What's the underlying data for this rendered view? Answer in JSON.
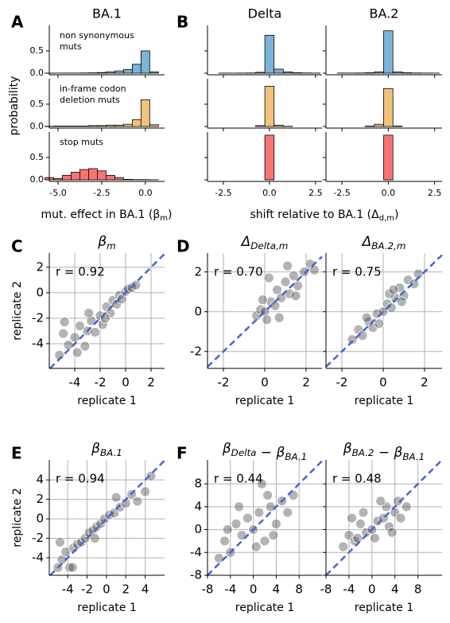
{
  "panels": [
    "A",
    "B",
    "C",
    "D",
    "E",
    "F"
  ],
  "labels": {
    "probability": "probability",
    "a_xlabel": {
      "text": "mut. effect in BA.1 (β",
      "sub": "m",
      "end": ")"
    },
    "b_xlabel": {
      "text": "shift relative to BA.1 (Δ",
      "sub": "d,m",
      "end": ")"
    }
  },
  "chart_data": [
    {
      "type": "histogram",
      "title": "BA.1",
      "annotation": [
        "non synonymous",
        "muts"
      ],
      "color": "#7ab4d8",
      "bins": [
        -5.75,
        -5.25,
        -4.75,
        -4.25,
        -3.75,
        -3.25,
        -2.75,
        -2.25,
        -1.75,
        -1.25,
        -0.75,
        -0.25,
        0.25,
        0.75
      ],
      "counts": [
        0.002,
        0.002,
        0.003,
        0.003,
        0.005,
        0.008,
        0.015,
        0.03,
        0.05,
        0.08,
        0.2,
        0.5,
        0.03
      ],
      "xlim": [
        -5.5,
        1.1
      ],
      "ylim": [
        -0.036,
        1.07
      ],
      "xticks": [
        -5,
        -2.5,
        0
      ],
      "show_xtick_labels": false,
      "yticks": [
        {
          "value": 0,
          "label": "0.0"
        },
        0.5
      ],
      "show_ytick_labels": true
    },
    {
      "type": "histogram",
      "annotation": [
        "in-frame codon",
        "deletion muts"
      ],
      "color": "#f0c27b",
      "bins": [
        -5.75,
        -5.25,
        -4.75,
        -4.25,
        -3.75,
        -3.25,
        -2.75,
        -2.25,
        -1.75,
        -1.25,
        -0.75,
        -0.25,
        0.25,
        0.75
      ],
      "counts": [
        0.005,
        0.01,
        0.01,
        0.01,
        0.01,
        0.02,
        0.02,
        0.03,
        0.03,
        0.05,
        0.15,
        0.6,
        0.04
      ],
      "xlim": [
        -5.5,
        1.1
      ],
      "ylim": [
        -0.036,
        1.07
      ],
      "xticks": [
        -5,
        -2.5,
        0
      ],
      "show_xtick_labels": false,
      "yticks": [
        {
          "value": 0,
          "label": "0.0"
        },
        0.5
      ],
      "show_ytick_labels": true
    },
    {
      "type": "histogram",
      "annotation": [
        "stop muts"
      ],
      "color": "#f87474",
      "bins": [
        -5.75,
        -5.25,
        -4.75,
        -4.25,
        -3.75,
        -3.25,
        -2.75,
        -2.25,
        -1.75,
        -1.25,
        -0.75,
        -0.25,
        0.25,
        0.75
      ],
      "counts": [
        0.05,
        0.03,
        0.1,
        0.17,
        0.23,
        0.25,
        0.2,
        0.1,
        0.05,
        0.01,
        0.005,
        0.005,
        0.002
      ],
      "xlim": [
        -5.5,
        1.1
      ],
      "ylim": [
        -0.036,
        1.07
      ],
      "xticks": [
        {
          "value": -5,
          "label": "-5.0"
        },
        -2.5,
        {
          "value": 0,
          "label": "0.0"
        }
      ],
      "show_xtick_labels": true,
      "yticks": [
        {
          "value": 0,
          "label": "0.0"
        },
        0.5
      ],
      "show_ytick_labels": true
    },
    {
      "type": "histogram",
      "title": "Delta",
      "color": "#7ab4d8",
      "bins": [
        -2.75,
        -2.25,
        -1.75,
        -1.25,
        -0.75,
        -0.25,
        0.25,
        0.75,
        1.25,
        1.75,
        2.25,
        2.75
      ],
      "counts": [
        0.002,
        0.002,
        0.003,
        0.005,
        0.02,
        0.85,
        0.09,
        0.03,
        0.01,
        0.005,
        0.003
      ],
      "xlim": [
        -3.36,
        2.85
      ],
      "ylim": [
        -0.036,
        1.07
      ],
      "xticks": [
        -2.5,
        0,
        2.5
      ],
      "show_xtick_labels": false,
      "yticks": [
        0,
        0.5
      ],
      "show_ytick_labels": false
    },
    {
      "type": "histogram",
      "color": "#f0c27b",
      "bins": [
        -2.75,
        -2.25,
        -1.75,
        -1.25,
        -0.75,
        -0.25,
        0.25,
        0.75,
        1.25,
        1.75,
        2.25,
        2.75
      ],
      "counts": [
        0,
        0,
        0,
        0,
        0.02,
        0.9,
        0.03,
        0.005,
        0,
        0,
        0
      ],
      "xlim": [
        -3.36,
        2.85
      ],
      "ylim": [
        -0.036,
        1.07
      ],
      "xticks": [
        -2.5,
        0,
        2.5
      ],
      "show_xtick_labels": false,
      "yticks": [
        0,
        0.5
      ],
      "show_ytick_labels": false
    },
    {
      "type": "histogram",
      "color": "#f87474",
      "bins": [
        -2.75,
        -2.25,
        -1.75,
        -1.25,
        -0.75,
        -0.25,
        0.25,
        0.75,
        1.25,
        1.75,
        2.25,
        2.75
      ],
      "counts": [
        0,
        0,
        0,
        0,
        0,
        1.0,
        0,
        0,
        0,
        0,
        0
      ],
      "xlim": [
        -3.36,
        2.85
      ],
      "ylim": [
        -0.036,
        1.07
      ],
      "xticks": [
        -2.5,
        {
          "value": 0,
          "label": "0.0"
        },
        2.5
      ],
      "show_xtick_labels": true,
      "yticks": [
        0,
        0.5
      ],
      "show_ytick_labels": false
    },
    {
      "type": "histogram",
      "title": "BA.2",
      "color": "#7ab4d8",
      "bins": [
        -2.75,
        -2.25,
        -1.75,
        -1.25,
        -0.75,
        -0.25,
        0.25,
        0.75,
        1.25,
        1.75,
        2.25,
        2.75
      ],
      "counts": [
        0.003,
        0.003,
        0.005,
        0.01,
        0.03,
        0.95,
        0.03,
        0.01,
        0.005,
        0.003,
        0.002
      ],
      "xlim": [
        -3.36,
        2.9
      ],
      "ylim": [
        -0.036,
        1.07
      ],
      "xticks": [
        -2.5,
        0,
        2.5
      ],
      "show_xtick_labels": false,
      "yticks": [
        0,
        0.5
      ],
      "show_ytick_labels": false
    },
    {
      "type": "histogram",
      "color": "#f0c27b",
      "bins": [
        -2.75,
        -2.25,
        -1.75,
        -1.25,
        -0.75,
        -0.25,
        0.25,
        0.75,
        1.25,
        1.75,
        2.25,
        2.75
      ],
      "counts": [
        0,
        0,
        0,
        0.01,
        0.05,
        0.85,
        0.01,
        0,
        0,
        0,
        0
      ],
      "xlim": [
        -3.36,
        2.9
      ],
      "ylim": [
        -0.036,
        1.07
      ],
      "xticks": [
        -2.5,
        0,
        2.5
      ],
      "show_xtick_labels": false,
      "yticks": [
        0,
        0.5
      ],
      "show_ytick_labels": false
    },
    {
      "type": "histogram",
      "color": "#f87474",
      "bins": [
        -2.75,
        -2.25,
        -1.75,
        -1.25,
        -0.75,
        -0.25,
        0.25,
        0.75,
        1.25,
        1.75,
        2.25,
        2.75
      ],
      "counts": [
        0,
        0,
        0,
        0,
        0,
        1.0,
        0,
        0,
        0,
        0,
        0
      ],
      "xlim": [
        -3.36,
        2.9
      ],
      "ylim": [
        -0.036,
        1.07
      ],
      "xticks": [
        -2.5,
        {
          "value": 0,
          "label": "0.0"
        },
        2.5
      ],
      "show_xtick_labels": true,
      "yticks": [
        0,
        0.5
      ],
      "show_ytick_labels": false
    },
    {
      "type": "scatter",
      "title": [
        {
          "text": "β",
          "sub": "m"
        }
      ],
      "annotation": "r = 0.92",
      "xlabel": "replicate 1",
      "ylabel": "replicate 2",
      "color": "#404040",
      "grid": true,
      "diagonal": true,
      "diagonal_color": "#4466d4",
      "x": [
        -5.2,
        -4.8,
        -4.5,
        -4.0,
        -3.6,
        -3.2,
        -3.0,
        -2.7,
        -2.4,
        -2.0,
        -1.8,
        -1.5,
        -1.2,
        -1.0,
        -0.7,
        -0.5,
        -0.3,
        0.0,
        0.2,
        0.5,
        -4.9,
        -3.8,
        -2.9,
        -1.6,
        0.8
      ],
      "y": [
        -4.9,
        -2.3,
        -4.1,
        -3.5,
        -2.6,
        -4.2,
        -3.0,
        -2.2,
        -3.1,
        -1.8,
        -2.5,
        -1.1,
        -1.6,
        -0.6,
        -0.9,
        -0.2,
        -0.5,
        0.1,
        0.3,
        0.4,
        -3.2,
        -4.7,
        -1.6,
        -2.0,
        0.6
      ],
      "xlim": [
        -6,
        3.06
      ],
      "ylim": [
        -5.94,
        3.12
      ],
      "xticks": [
        -4,
        -2,
        0,
        2
      ],
      "yticks": [
        -4,
        -2,
        0,
        2
      ],
      "show_ytick_labels": true
    },
    {
      "type": "scatter",
      "title": [
        {
          "text": "Δ",
          "sub": "Delta,m"
        }
      ],
      "annotation": "r = 0.70",
      "xlabel": "replicate 1",
      "color": "#404040",
      "grid": true,
      "diagonal": true,
      "diagonal_color": "#4466d4",
      "x": [
        -0.4,
        -0.2,
        0.0,
        0.1,
        0.3,
        0.5,
        0.6,
        0.8,
        1.0,
        1.2,
        1.4,
        1.6,
        1.9,
        2.2,
        0.2,
        0.7,
        1.1,
        -0.1,
        1.5,
        2.4
      ],
      "y": [
        -0.2,
        0.1,
        0.0,
        -0.4,
        0.5,
        0.3,
        1.1,
        0.7,
        1.5,
        0.9,
        1.8,
        1.3,
        2.0,
        2.4,
        1.7,
        -0.3,
        2.3,
        0.6,
        0.8,
        2.1
      ],
      "xlim": [
        -2.77,
        2.77
      ],
      "ylim": [
        -2.85,
        2.95
      ],
      "xticks": [
        -2,
        0,
        2
      ],
      "yticks": [
        -2,
        0,
        2
      ],
      "show_ytick_labels": true
    },
    {
      "type": "scatter",
      "title": [
        {
          "text": "Δ",
          "sub": "BA.2,m"
        }
      ],
      "annotation": "r = 0.75",
      "xlabel": "replicate 1",
      "color": "#404040",
      "grid": true,
      "diagonal": true,
      "diagonal_color": "#4466d4",
      "x": [
        -1.5,
        -1.2,
        -1.0,
        -0.7,
        -0.5,
        -0.3,
        0,
        0.2,
        0.4,
        0.6,
        0.8,
        1.0,
        1.2,
        1.5,
        -0.8,
        0.3,
        0.9,
        -0.2,
        1.7,
        0.5
      ],
      "y": [
        -1.4,
        -0.9,
        -1.2,
        -0.5,
        -0.8,
        -0.1,
        0,
        0.4,
        0.2,
        0.7,
        1.2,
        0.8,
        1.6,
        1.4,
        -0.3,
        0.9,
        0.5,
        -0.6,
        1.9,
        1.1
      ],
      "xlim": [
        -2.77,
        2.85
      ],
      "ylim": [
        -2.85,
        2.95
      ],
      "xticks": [
        -2,
        0,
        2
      ],
      "yticks": [
        -2,
        0,
        2
      ],
      "show_ytick_labels": false
    },
    {
      "type": "scatter",
      "title": [
        {
          "text": "β",
          "sub": "BA.1"
        }
      ],
      "annotation": "r = 0.94",
      "xlabel": "replicate 1",
      "ylabel": "replicate 2",
      "color": "#404040",
      "grid": true,
      "diagonal": true,
      "diagonal_color": "#4466d4",
      "x": [
        -5,
        -4.6,
        -4.2,
        -3.8,
        -3.4,
        -3,
        -2.6,
        -2.2,
        -1.8,
        -1.4,
        -1,
        -0.6,
        -0.2,
        0.3,
        0.8,
        1.4,
        2,
        2.6,
        3.2,
        4,
        -4.8,
        -3.5,
        -1.2,
        1.0,
        4.6
      ],
      "y": [
        -5,
        -4.2,
        -3.4,
        -5,
        -3,
        -2.6,
        -2.4,
        -2,
        -1.4,
        -1.2,
        -0.8,
        -0.5,
        0,
        0.4,
        0.6,
        1.2,
        1.6,
        2.5,
        1.8,
        2.8,
        -2.4,
        -5,
        -2.0,
        2.2,
        4.4
      ],
      "xlim": [
        -5.9,
        6
      ],
      "ylim": [
        -5.8,
        6.06
      ],
      "xticks": [
        -4,
        -2,
        0,
        2,
        4
      ],
      "yticks": [
        -4,
        -2,
        0,
        2,
        4
      ],
      "show_ytick_labels": true
    },
    {
      "type": "scatter",
      "title": [
        {
          "text": "β",
          "sub": "Delta"
        },
        {
          "text": " − "
        },
        {
          "text": "β",
          "sub": "BA.1"
        }
      ],
      "annotation": "r = 0.44",
      "xlabel": "replicate 1",
      "color": "#404040",
      "grid": true,
      "diagonal": true,
      "diagonal_color": "#4466d4",
      "x": [
        -6,
        -5,
        -4,
        -3,
        -2,
        -1,
        0,
        1,
        2,
        3,
        4,
        5,
        6,
        7,
        -2.5,
        0.5,
        2.5,
        -4.5,
        3.5,
        1.5
      ],
      "y": [
        -5,
        -2,
        -4,
        1,
        -1,
        2,
        0,
        3,
        -2,
        4,
        1,
        5,
        3,
        6,
        4,
        -3,
        6,
        0,
        -1,
        8
      ],
      "xlim": [
        -8,
        12
      ],
      "ylim": [
        -8,
        12.2
      ],
      "xticks": [
        -8,
        -4,
        0,
        4,
        8
      ],
      "yticks": [
        -8,
        -4,
        0,
        4,
        8
      ],
      "show_ytick_labels": true
    },
    {
      "type": "scatter",
      "title": [
        {
          "text": "β",
          "sub": "BA.2"
        },
        {
          "text": " − "
        },
        {
          "text": "β",
          "sub": "BA.1"
        }
      ],
      "annotation": "r = 0.48",
      "xlabel": "replicate 1",
      "color": "#404040",
      "grid": true,
      "diagonal": true,
      "diagonal_color": "#4466d4",
      "x": [
        -5,
        -4,
        -3,
        -2,
        -1,
        0,
        1,
        2,
        3,
        4,
        5,
        6,
        -2.5,
        0.5,
        2.5,
        -3.5,
        3.5,
        1.5,
        -1.5,
        4.5
      ],
      "y": [
        -3,
        -1,
        -2,
        1,
        -0.5,
        0,
        1.5,
        2,
        0.5,
        3,
        2,
        4,
        -1.5,
        -1.5,
        4,
        2,
        -0.5,
        5,
        3,
        5
      ],
      "xlim": [
        -8,
        12.2
      ],
      "ylim": [
        -8,
        12.2
      ],
      "xticks": [
        -8,
        -4,
        0,
        4,
        8
      ],
      "yticks": [
        -8,
        -4,
        0,
        4,
        8
      ],
      "show_ytick_labels": false
    }
  ]
}
